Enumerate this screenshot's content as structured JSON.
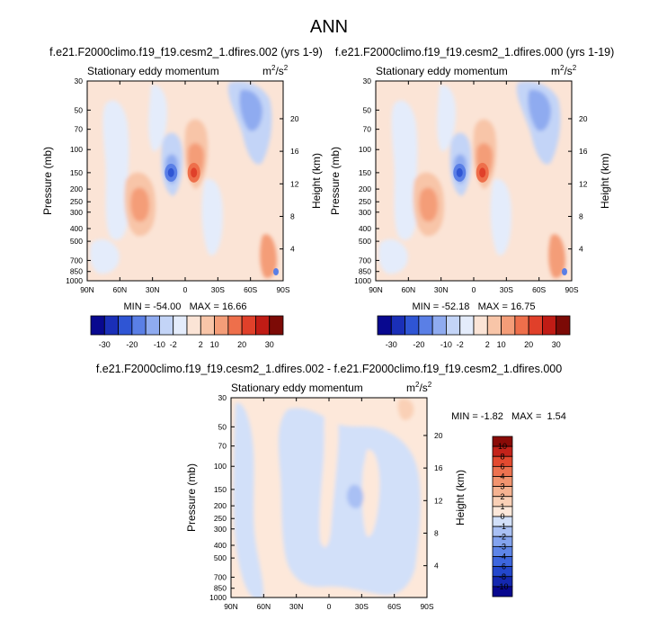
{
  "title": "ANN",
  "chart_data": [
    {
      "type": "heatmap",
      "id": "p1",
      "title": "f.e21.F2000climo.f19_f19.cesm2_1.dfires.002 (yrs 1-9)",
      "subtitle": "Stationary eddy momentum",
      "units": "m²/s²",
      "units_base": "m",
      "units_mid": "2",
      "units_tail": "/s",
      "units_exp": "2",
      "ylabel": "Pressure (mb)",
      "ylabel_right": "Height (km)",
      "x_ticks": [
        "90N",
        "60N",
        "30N",
        "0",
        "30S",
        "60S",
        "90S"
      ],
      "x_values": [
        90,
        60,
        30,
        0,
        -30,
        -60,
        -90
      ],
      "y_ticks": [
        "30",
        "50",
        "70",
        "100",
        "150",
        "200",
        "250",
        "300",
        "400",
        "500",
        "700",
        "850",
        "1000"
      ],
      "y_values": [
        30,
        50,
        70,
        100,
        150,
        200,
        250,
        300,
        400,
        500,
        700,
        850,
        1000
      ],
      "height_ticks": [
        "20",
        "16",
        "12",
        "8",
        "4"
      ],
      "height_values": [
        20,
        16,
        12,
        8,
        4
      ],
      "ylim": [
        1000,
        30
      ],
      "stats": "MIN = -54.00   MAX = 16.66",
      "colorbar_levels": [
        "-30",
        "-20",
        "-10",
        "-2",
        "2",
        "10",
        "20",
        "30"
      ],
      "features": [
        {
          "name": "negative-core",
          "lat": 13,
          "p": 150,
          "value": -54.0
        },
        {
          "name": "positive-core",
          "lat": -8,
          "p": 150,
          "value": 16.66
        }
      ]
    },
    {
      "type": "heatmap",
      "id": "p2",
      "title": "f.e21.F2000climo.f19_f19.cesm2_1.dfires.000 (yrs 1-19)",
      "subtitle": "Stationary eddy momentum",
      "units": "m²/s²",
      "units_base": "m",
      "units_mid": "2",
      "units_tail": "/s",
      "units_exp": "2",
      "ylabel": "Pressure (mb)",
      "ylabel_right": "Height (km)",
      "x_ticks": [
        "90N",
        "60N",
        "30N",
        "0",
        "30S",
        "60S",
        "90S"
      ],
      "x_values": [
        90,
        60,
        30,
        0,
        -30,
        -60,
        -90
      ],
      "y_ticks": [
        "30",
        "50",
        "70",
        "100",
        "150",
        "200",
        "250",
        "300",
        "400",
        "500",
        "700",
        "850",
        "1000"
      ],
      "y_values": [
        30,
        50,
        70,
        100,
        150,
        200,
        250,
        300,
        400,
        500,
        700,
        850,
        1000
      ],
      "height_ticks": [
        "20",
        "16",
        "12",
        "8",
        "4"
      ],
      "height_values": [
        20,
        16,
        12,
        8,
        4
      ],
      "ylim": [
        1000,
        30
      ],
      "stats": "MIN = -52.18   MAX = 16.75",
      "colorbar_levels": [
        "-30",
        "-20",
        "-10",
        "-2",
        "2",
        "10",
        "20",
        "30"
      ],
      "features": [
        {
          "name": "negative-core",
          "lat": 13,
          "p": 150,
          "value": -52.18
        },
        {
          "name": "positive-core",
          "lat": -8,
          "p": 150,
          "value": 16.75
        }
      ]
    },
    {
      "type": "heatmap",
      "id": "p3",
      "title": "f.e21.F2000climo.f19_f19.cesm2_1.dfires.002 - f.e21.F2000climo.f19_f19.cesm2_1.dfires.000",
      "subtitle": "Stationary eddy momentum",
      "units": "m²/s²",
      "units_base": "m",
      "units_mid": "2",
      "units_tail": "/s",
      "units_exp": "2",
      "ylabel": "Pressure (mb)",
      "ylabel_right": "Height (km)",
      "x_ticks": [
        "90N",
        "60N",
        "30N",
        "0",
        "30S",
        "60S",
        "90S"
      ],
      "x_values": [
        90,
        60,
        30,
        0,
        -30,
        -60,
        -90
      ],
      "y_ticks": [
        "30",
        "50",
        "70",
        "100",
        "150",
        "200",
        "250",
        "300",
        "400",
        "500",
        "700",
        "850",
        "1000"
      ],
      "y_values": [
        30,
        50,
        70,
        100,
        150,
        200,
        250,
        300,
        400,
        500,
        700,
        850,
        1000
      ],
      "height_ticks": [
        "20",
        "16",
        "12",
        "8",
        "4"
      ],
      "height_values": [
        20,
        16,
        12,
        8,
        4
      ],
      "ylim": [
        1000,
        30
      ],
      "stats": "MIN = -1.82   MAX =  1.54",
      "colorbar_levels": [
        "10",
        "8",
        "6",
        "4",
        "3",
        "2",
        "1",
        "0",
        "-1",
        "-2",
        "-3",
        "-4",
        "-6",
        "-8",
        "-10"
      ]
    }
  ],
  "colors": {
    "main_palette": [
      "#08088f",
      "#1a2fb8",
      "#2f55d4",
      "#5a7fe6",
      "#8fabf0",
      "#c3d4f7",
      "#e4ecfb",
      "#fbe4d6",
      "#f8c5a8",
      "#f49d78",
      "#ee6f4b",
      "#e0402a",
      "#c01c15",
      "#7c0a06"
    ],
    "diff_palette": [
      "#08088f",
      "#1428b0",
      "#2347cc",
      "#3d66de",
      "#5e85e8",
      "#83a3ef",
      "#a9c0f4",
      "#d2e0f9",
      "#fde8da",
      "#fad0b6",
      "#f6b391",
      "#f2946f",
      "#ed7250",
      "#e34a30",
      "#c4231a",
      "#8a0b07"
    ]
  }
}
